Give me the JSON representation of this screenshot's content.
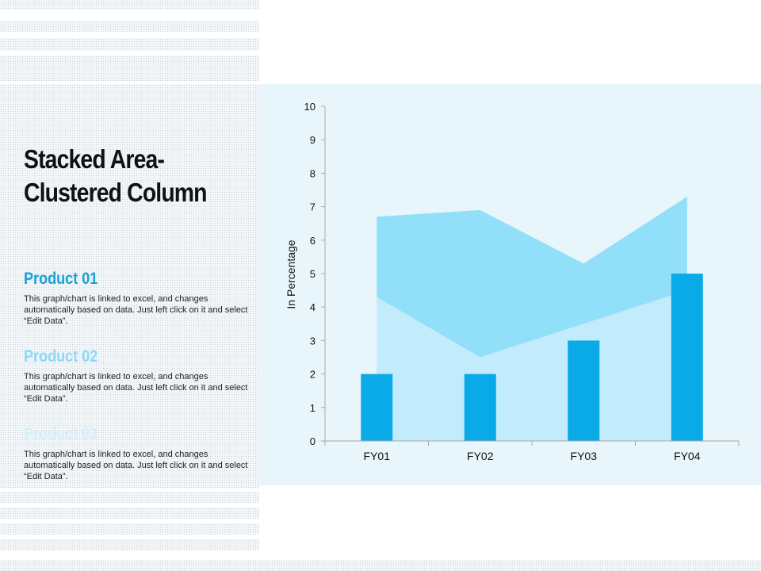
{
  "slide": {
    "title_line1": "Stacked Area-",
    "title_line2": "Clustered Column"
  },
  "products": [
    {
      "name": "Product 01",
      "color": "#12a3d9",
      "description": "This graph/chart is linked to excel, and changes automatically based on data. Just left click on it and select “Edit Data”."
    },
    {
      "name": "Product 02",
      "color": "#8ad9f7",
      "description": "This graph/chart is linked to excel, and changes automatically based on data. Just left click on it and select “Edit Data”."
    },
    {
      "name": "Product 03",
      "color": "#d4f0fb",
      "description": "This graph/chart is linked to excel, and changes automatically based on data. Just left click on it and select “Edit Data”."
    }
  ],
  "chart_data": {
    "type": "bar",
    "categories": [
      "FY01",
      "FY02",
      "FY03",
      "FY04"
    ],
    "ylabel": "In Percentage",
    "ylim": [
      0,
      10
    ],
    "yticks": [
      "0",
      "1",
      "2",
      "3",
      "4",
      "5",
      "6",
      "7",
      "8",
      "9",
      "10"
    ],
    "series": [
      {
        "kind": "column",
        "values": [
          2,
          2,
          3,
          5
        ],
        "color": "#0aaae8"
      },
      {
        "kind": "area",
        "values": [
          4.3,
          2.5,
          3.5,
          4.5
        ],
        "color": "#c2ebfb"
      },
      {
        "kind": "area",
        "values": [
          2.4,
          4.4,
          1.8,
          2.8
        ],
        "color": "#92dff9"
      }
    ],
    "grid": false
  }
}
